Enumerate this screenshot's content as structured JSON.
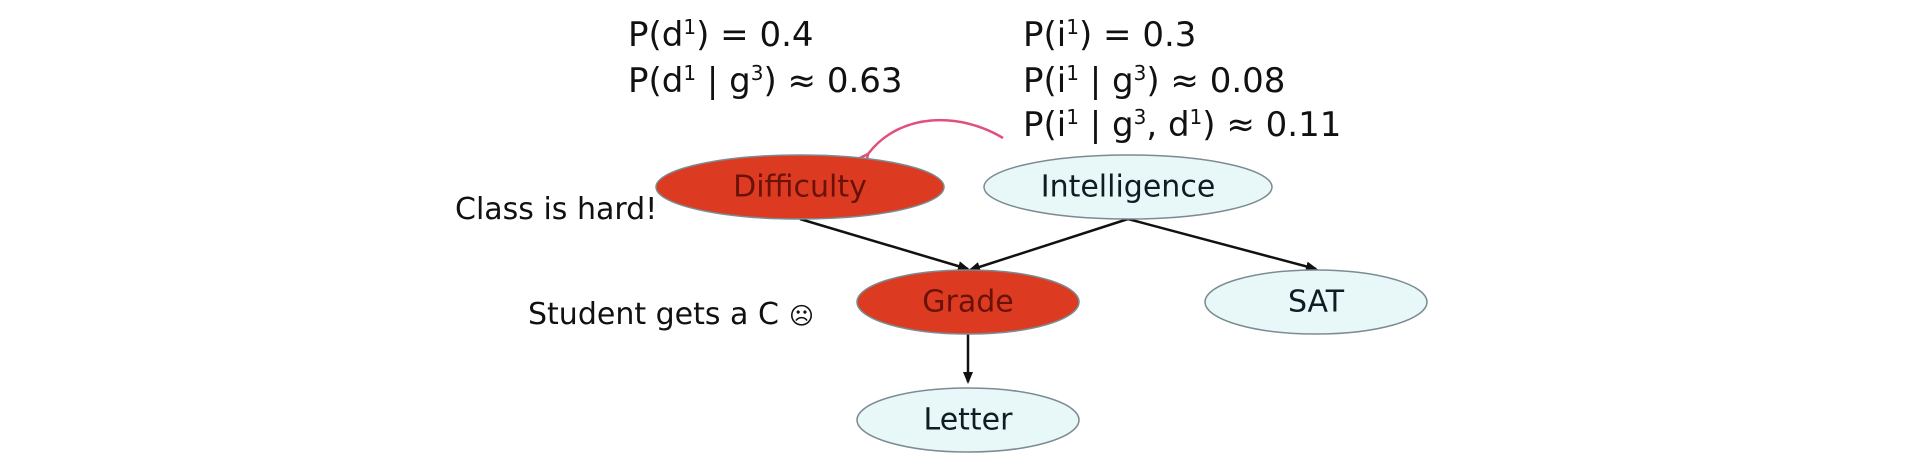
{
  "probabilities": {
    "difficulty": [
      {
        "prefix": "P(d",
        "sup1": "1",
        "mid": ")",
        "sup2": "",
        "suffix": " = 0.4"
      },
      {
        "prefix": "P(d",
        "sup1": "1",
        "mid": " | g",
        "sup2": "3",
        "suffix": ") ≈ 0.63"
      }
    ],
    "intelligence": [
      {
        "prefix": "P(i",
        "sup1": "1",
        "mid": ")",
        "sup2": "",
        "suffix": " = 0.3"
      },
      {
        "prefix": "P(i",
        "sup1": "1",
        "mid": " | g",
        "sup2": "3",
        "suffix": ") ≈ 0.08"
      },
      {
        "prefix": "P(i",
        "sup1": "1",
        "mid": " | g",
        "sup2": "3",
        "mid2": ", d",
        "sup3": "1",
        "suffix": ") ≈ 0.11"
      }
    ]
  },
  "nodes": {
    "difficulty": {
      "label": "Difficulty",
      "observed": true
    },
    "intelligence": {
      "label": "Intelligence",
      "observed": false
    },
    "grade": {
      "label": "Grade",
      "observed": true
    },
    "sat": {
      "label": "SAT",
      "observed": false
    },
    "letter": {
      "label": "Letter",
      "observed": false
    }
  },
  "annotations": {
    "class_hard": "Class is hard!",
    "student_c": "Student gets a C",
    "frown_symbol": "☹"
  },
  "colors": {
    "observed_fill": "#dd3a22",
    "observed_text": "#6b1208",
    "unobserved_fill": "#e8f7f8",
    "unobserved_text": "#0d1d24",
    "node_stroke": "#7a8c92",
    "edge": "#111111",
    "influence_arrow": "#e0507a"
  }
}
